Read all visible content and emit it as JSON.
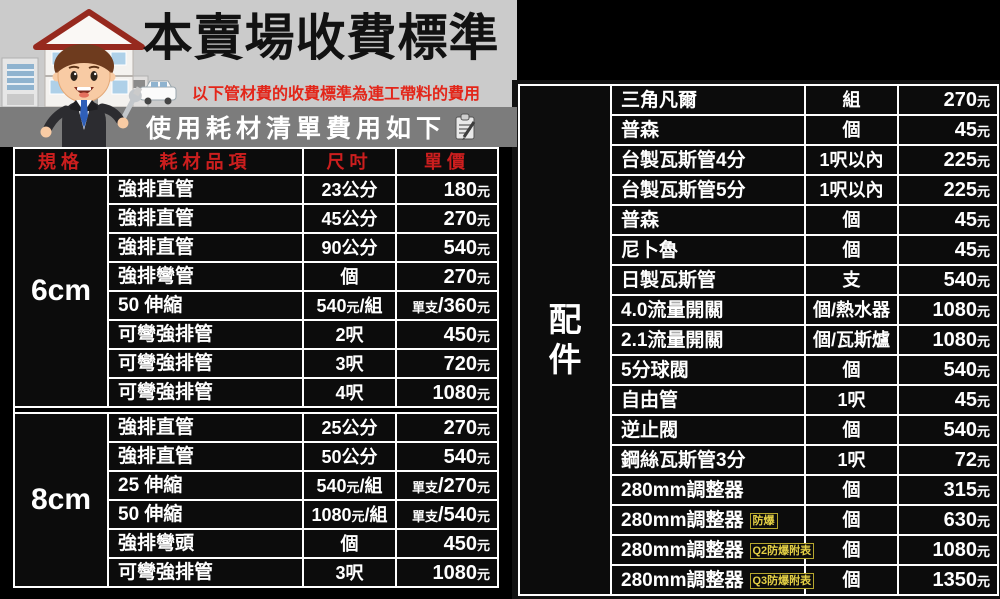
{
  "colors": {
    "background": "#000000",
    "header_gray": "#cbcbcb",
    "banner_gray": "#7c7c7c",
    "accent_red": "#cc1e1e",
    "subtitle_red": "#e3261a",
    "table_text": "#ffffff",
    "badge_yellow": "#e3cf44"
  },
  "header": {
    "title": "本賣場收費標準",
    "subtitle": "以下管材費的收費標準為連工帶料的費用",
    "banner": "使用耗材清單費用如下",
    "icons": [
      "house-icon",
      "plumber-mascot-icon",
      "van-icon",
      "clipboard-icon"
    ]
  },
  "left_table": {
    "columns": [
      "規格",
      "耗材品項",
      "尺吋",
      "單價"
    ],
    "groups": [
      {
        "spec": "6cm",
        "rows": [
          {
            "item": [
              {
                "t": "強排直管"
              }
            ],
            "size": [
              {
                "t": "23公分"
              }
            ],
            "price": [
              {
                "t": "180"
              },
              {
                "t": "元",
                "small": true
              }
            ]
          },
          {
            "item": [
              {
                "t": "強排直管"
              }
            ],
            "size": [
              {
                "t": "45公分"
              }
            ],
            "price": [
              {
                "t": "270"
              },
              {
                "t": "元",
                "small": true
              }
            ]
          },
          {
            "item": [
              {
                "t": "強排直管"
              }
            ],
            "size": [
              {
                "t": "90公分"
              }
            ],
            "price": [
              {
                "t": "540"
              },
              {
                "t": "元",
                "small": true
              }
            ]
          },
          {
            "item": [
              {
                "t": "強排彎管"
              }
            ],
            "size": [
              {
                "t": "個"
              }
            ],
            "price": [
              {
                "t": "270"
              },
              {
                "t": "元",
                "small": true
              }
            ]
          },
          {
            "item": [
              {
                "t": "50 伸縮"
              }
            ],
            "size": [
              {
                "t": "540"
              },
              {
                "t": "元",
                "small": true
              },
              {
                "t": "/組"
              }
            ],
            "price": [
              {
                "t": "單支",
                "small": true
              },
              {
                "t": "/360"
              },
              {
                "t": "元",
                "small": true
              }
            ]
          },
          {
            "item": [
              {
                "t": "可彎強排管"
              }
            ],
            "size": [
              {
                "t": "2呎"
              }
            ],
            "price": [
              {
                "t": "450"
              },
              {
                "t": "元",
                "small": true
              }
            ]
          },
          {
            "item": [
              {
                "t": "可彎強排管"
              }
            ],
            "size": [
              {
                "t": "3呎"
              }
            ],
            "price": [
              {
                "t": "720"
              },
              {
                "t": "元",
                "small": true
              }
            ]
          },
          {
            "item": [
              {
                "t": "可彎強排管"
              }
            ],
            "size": [
              {
                "t": "4呎"
              }
            ],
            "price": [
              {
                "t": "1080"
              },
              {
                "t": "元",
                "small": true
              }
            ]
          }
        ]
      },
      {
        "spec": "8cm",
        "rows": [
          {
            "item": [
              {
                "t": "強排直管"
              }
            ],
            "size": [
              {
                "t": "25公分"
              }
            ],
            "price": [
              {
                "t": "270"
              },
              {
                "t": "元",
                "small": true
              }
            ]
          },
          {
            "item": [
              {
                "t": "強排直管"
              }
            ],
            "size": [
              {
                "t": "50公分"
              }
            ],
            "price": [
              {
                "t": "540"
              },
              {
                "t": "元",
                "small": true
              }
            ]
          },
          {
            "item": [
              {
                "t": "25 伸縮"
              }
            ],
            "size": [
              {
                "t": "540"
              },
              {
                "t": "元",
                "small": true
              },
              {
                "t": "/組"
              }
            ],
            "price": [
              {
                "t": "單支",
                "small": true
              },
              {
                "t": "/270"
              },
              {
                "t": "元",
                "small": true
              }
            ]
          },
          {
            "item": [
              {
                "t": "50 伸縮"
              }
            ],
            "size": [
              {
                "t": "1080"
              },
              {
                "t": "元",
                "small": true
              },
              {
                "t": "/組"
              }
            ],
            "price": [
              {
                "t": "單支",
                "small": true
              },
              {
                "t": "/540"
              },
              {
                "t": "元",
                "small": true
              }
            ]
          },
          {
            "item": [
              {
                "t": "強排彎頭"
              }
            ],
            "size": [
              {
                "t": "個"
              }
            ],
            "price": [
              {
                "t": "450"
              },
              {
                "t": "元",
                "small": true
              }
            ]
          },
          {
            "item": [
              {
                "t": "可彎強排管"
              }
            ],
            "size": [
              {
                "t": "3呎"
              }
            ],
            "price": [
              {
                "t": "1080"
              },
              {
                "t": "元",
                "small": true
              }
            ]
          }
        ]
      }
    ]
  },
  "right_table": {
    "group_label": "配件",
    "rows": [
      {
        "item": [
          {
            "t": "三角凡爾"
          }
        ],
        "unit": [
          {
            "t": "組"
          }
        ],
        "price": [
          {
            "t": "270"
          },
          {
            "t": "元",
            "small": true
          }
        ]
      },
      {
        "item": [
          {
            "t": "普森"
          }
        ],
        "unit": [
          {
            "t": "個"
          }
        ],
        "price": [
          {
            "t": "45"
          },
          {
            "t": "元",
            "small": true
          }
        ]
      },
      {
        "item": [
          {
            "t": "台製瓦斯管4分"
          }
        ],
        "unit": [
          {
            "t": "1呎以內"
          }
        ],
        "price": [
          {
            "t": "225"
          },
          {
            "t": "元",
            "small": true
          }
        ]
      },
      {
        "item": [
          {
            "t": "台製瓦斯管5分"
          }
        ],
        "unit": [
          {
            "t": "1呎以內"
          }
        ],
        "price": [
          {
            "t": "225"
          },
          {
            "t": "元",
            "small": true
          }
        ]
      },
      {
        "item": [
          {
            "t": "普森"
          }
        ],
        "unit": [
          {
            "t": "個"
          }
        ],
        "price": [
          {
            "t": "45"
          },
          {
            "t": "元",
            "small": true
          }
        ]
      },
      {
        "item": [
          {
            "t": "尼卜魯"
          }
        ],
        "unit": [
          {
            "t": "個"
          }
        ],
        "price": [
          {
            "t": "45"
          },
          {
            "t": "元",
            "small": true
          }
        ]
      },
      {
        "item": [
          {
            "t": "日製瓦斯管"
          }
        ],
        "unit": [
          {
            "t": "支"
          }
        ],
        "price": [
          {
            "t": "540"
          },
          {
            "t": "元",
            "small": true
          }
        ]
      },
      {
        "item": [
          {
            "t": "4.0流量開關"
          }
        ],
        "unit": [
          {
            "t": "個/熱水器"
          }
        ],
        "price": [
          {
            "t": "1080"
          },
          {
            "t": "元",
            "small": true
          }
        ]
      },
      {
        "item": [
          {
            "t": "2.1流量開關"
          }
        ],
        "unit": [
          {
            "t": "個/瓦斯爐"
          }
        ],
        "price": [
          {
            "t": "1080"
          },
          {
            "t": "元",
            "small": true
          }
        ]
      },
      {
        "item": [
          {
            "t": "5分球閥"
          }
        ],
        "unit": [
          {
            "t": "個"
          }
        ],
        "price": [
          {
            "t": "540"
          },
          {
            "t": "元",
            "small": true
          }
        ]
      },
      {
        "item": [
          {
            "t": "自由管"
          }
        ],
        "unit": [
          {
            "t": "1呎"
          }
        ],
        "price": [
          {
            "t": "45"
          },
          {
            "t": "元",
            "small": true
          }
        ]
      },
      {
        "item": [
          {
            "t": "逆止閥"
          }
        ],
        "unit": [
          {
            "t": "個"
          }
        ],
        "price": [
          {
            "t": "540"
          },
          {
            "t": "元",
            "small": true
          }
        ]
      },
      {
        "item": [
          {
            "t": "鋼絲瓦斯管3分"
          }
        ],
        "unit": [
          {
            "t": "1呎"
          }
        ],
        "price": [
          {
            "t": "72"
          },
          {
            "t": "元",
            "small": true
          }
        ]
      },
      {
        "item": [
          {
            "t": "280mm調整器"
          }
        ],
        "unit": [
          {
            "t": "個"
          }
        ],
        "price": [
          {
            "t": "315"
          },
          {
            "t": "元",
            "small": true
          }
        ]
      },
      {
        "item": [
          {
            "t": "280mm調整器"
          },
          {
            "t": "防爆",
            "badge": true
          }
        ],
        "unit": [
          {
            "t": "個"
          }
        ],
        "price": [
          {
            "t": "630"
          },
          {
            "t": "元",
            "small": true
          }
        ]
      },
      {
        "item": [
          {
            "t": "280mm調整器"
          },
          {
            "t": "Q2防爆附表",
            "badge": true
          }
        ],
        "unit": [
          {
            "t": "個"
          }
        ],
        "price": [
          {
            "t": "1080"
          },
          {
            "t": "元",
            "small": true
          }
        ]
      },
      {
        "item": [
          {
            "t": "280mm調整器"
          },
          {
            "t": "Q3防爆附表",
            "badge": true
          }
        ],
        "unit": [
          {
            "t": "個"
          }
        ],
        "price": [
          {
            "t": "1350"
          },
          {
            "t": "元",
            "small": true
          }
        ]
      }
    ]
  }
}
